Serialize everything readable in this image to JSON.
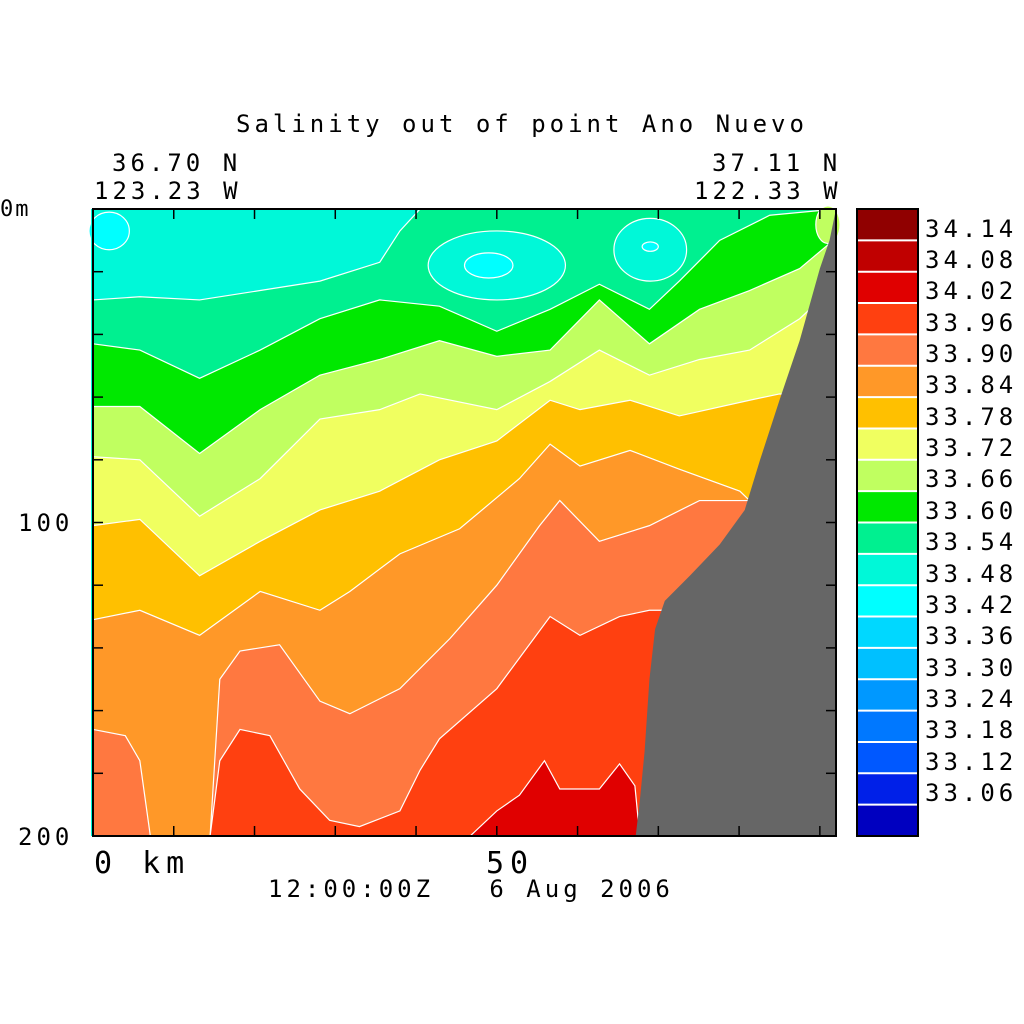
{
  "chart_data": {
    "type": "heatmap",
    "subtype": "filled-contour-section",
    "title": "Salinity out of point Ano Nuevo",
    "start_location": {
      "lat": "36.70 N",
      "lon": "123.23 W"
    },
    "end_location": {
      "lat": "37.11 N",
      "lon": "122.33 W"
    },
    "xlabel": "km",
    "ylabel": "m",
    "x_tick_labels": [
      "0",
      "50"
    ],
    "y_tick_labels": [
      "0m",
      "100",
      "200"
    ],
    "xlim": [
      0,
      92
    ],
    "ylim": [
      200,
      0
    ],
    "x_minor_tick_step": 10,
    "y_minor_tick_step": 20,
    "timestamp": "12:00:00Z   6 Aug 2006",
    "colorbar": {
      "levels": [
        "33.06",
        "33.12",
        "33.18",
        "33.24",
        "33.30",
        "33.36",
        "33.42",
        "33.48",
        "33.54",
        "33.60",
        "33.66",
        "33.72",
        "33.78",
        "33.84",
        "33.90",
        "33.96",
        "34.02",
        "34.08",
        "34.14"
      ],
      "colors": [
        "#0000c0",
        "#0020e8",
        "#0058ff",
        "#0078ff",
        "#0098ff",
        "#00c0ff",
        "#00d8ff",
        "#00ffff",
        "#00f8d8",
        "#00f090",
        "#00e800",
        "#c0ff60",
        "#f0ff60",
        "#ffc000",
        "#ff9828",
        "#ff7840",
        "#ff4010",
        "#e00000",
        "#c00000",
        "#900000"
      ]
    },
    "base_color": "#00f8d8",
    "interfaces": [
      {
        "level": "33.60",
        "color": "#00f090",
        "points": [
          [
            0,
            29
          ],
          [
            5.8,
            28
          ],
          [
            13.2,
            29
          ],
          [
            20.7,
            26
          ],
          [
            28.1,
            23
          ],
          [
            35.5,
            17
          ],
          [
            38,
            7
          ],
          [
            40.5,
            0
          ],
          [
            92,
            0
          ]
        ]
      },
      {
        "level": "33.66",
        "color": "#00e800",
        "points": [
          [
            0,
            43
          ],
          [
            5.8,
            45
          ],
          [
            13.2,
            54
          ],
          [
            20.7,
            45
          ],
          [
            28.1,
            35
          ],
          [
            35.5,
            29
          ],
          [
            42.9,
            31
          ],
          [
            50,
            39
          ],
          [
            56.6,
            32
          ],
          [
            62.7,
            24
          ],
          [
            68.9,
            32
          ],
          [
            72.6,
            23
          ],
          [
            77.6,
            10
          ],
          [
            83.8,
            2
          ],
          [
            92,
            0
          ]
        ]
      },
      {
        "level": "33.72",
        "color": "#c0ff60",
        "points": [
          [
            0,
            63
          ],
          [
            5.8,
            63
          ],
          [
            13.2,
            78
          ],
          [
            20.7,
            64
          ],
          [
            28.1,
            53
          ],
          [
            35.5,
            48
          ],
          [
            42.9,
            42
          ],
          [
            50,
            47
          ],
          [
            56.6,
            45
          ],
          [
            62.7,
            29
          ],
          [
            68.9,
            43
          ],
          [
            75.1,
            32
          ],
          [
            81.3,
            26
          ],
          [
            87.5,
            19
          ],
          [
            91.2,
            11
          ],
          [
            92,
            10
          ]
        ]
      },
      {
        "level": "33.78",
        "color": "#f0ff60",
        "points": [
          [
            0,
            79
          ],
          [
            5.8,
            80
          ],
          [
            13.2,
            98
          ],
          [
            20.7,
            86
          ],
          [
            28.1,
            67
          ],
          [
            35.5,
            64
          ],
          [
            40.5,
            59
          ],
          [
            50,
            64
          ],
          [
            56.6,
            55
          ],
          [
            62.7,
            45
          ],
          [
            68.9,
            53
          ],
          [
            75.1,
            48
          ],
          [
            81.3,
            45
          ],
          [
            87.5,
            35
          ],
          [
            90,
            29
          ],
          [
            92,
            28
          ]
        ]
      },
      {
        "level": "33.84",
        "color": "#ffc000",
        "points": [
          [
            0,
            101
          ],
          [
            5.8,
            99
          ],
          [
            13.2,
            117
          ],
          [
            20.7,
            106
          ],
          [
            28.1,
            96
          ],
          [
            35.5,
            90
          ],
          [
            42.9,
            80
          ],
          [
            50,
            74
          ],
          [
            56.6,
            61
          ],
          [
            60.3,
            64
          ],
          [
            66.5,
            61
          ],
          [
            72.6,
            66
          ],
          [
            81.3,
            61
          ],
          [
            85,
            59
          ],
          [
            92,
            59
          ]
        ]
      },
      {
        "level": "33.90",
        "color": "#ff9828",
        "points": [
          [
            0,
            131
          ],
          [
            5.8,
            128
          ],
          [
            13.2,
            136
          ],
          [
            20.7,
            122
          ],
          [
            28.1,
            128
          ],
          [
            31.8,
            122
          ],
          [
            38,
            110
          ],
          [
            45.4,
            102
          ],
          [
            52.8,
            86
          ],
          [
            56.6,
            75
          ],
          [
            60.3,
            82
          ],
          [
            66.5,
            77
          ],
          [
            72.6,
            83
          ],
          [
            80.1,
            90
          ],
          [
            81.3,
            93
          ],
          [
            92,
            93
          ]
        ]
      },
      {
        "level": "33.96",
        "color": "#ff7840",
        "points": [
          [
            0,
            166
          ],
          [
            4,
            168
          ],
          [
            5.8,
            176
          ],
          [
            7.1,
            200
          ],
          [
            14.5,
            200
          ],
          [
            15.7,
            150
          ],
          [
            18.2,
            141
          ],
          [
            23.1,
            139
          ],
          [
            28.1,
            157
          ],
          [
            31.8,
            161
          ],
          [
            38,
            153
          ],
          [
            44.2,
            137
          ],
          [
            50,
            120
          ],
          [
            55.3,
            101
          ],
          [
            57.8,
            93
          ],
          [
            62.7,
            106
          ],
          [
            68.9,
            101
          ],
          [
            75.1,
            93
          ],
          [
            80.7,
            93
          ],
          [
            92,
            93
          ]
        ]
      },
      {
        "level": "34.02",
        "color": "#ff4010",
        "points": [
          [
            0,
            200
          ],
          [
            14.5,
            200
          ],
          [
            15.7,
            176
          ],
          [
            18.2,
            166
          ],
          [
            21.9,
            168
          ],
          [
            25.6,
            185
          ],
          [
            29.3,
            195
          ],
          [
            33,
            197
          ],
          [
            38,
            192
          ],
          [
            40.5,
            179
          ],
          [
            42.9,
            169
          ],
          [
            50,
            153
          ],
          [
            56.6,
            130
          ],
          [
            60.3,
            136
          ],
          [
            65.2,
            130
          ],
          [
            68.9,
            128
          ],
          [
            92,
            128
          ]
        ]
      },
      {
        "level": "34.08",
        "color": "#e00000",
        "points": [
          [
            0,
            200
          ],
          [
            46.7,
            200
          ],
          [
            50,
            192
          ],
          [
            52.8,
            187
          ],
          [
            55.9,
            176
          ],
          [
            57.8,
            185
          ],
          [
            62.7,
            185
          ],
          [
            65.2,
            177
          ],
          [
            67.1,
            184
          ],
          [
            67.7,
            200
          ],
          [
            92,
            200
          ]
        ]
      }
    ],
    "patches": [
      {
        "level": "33.48",
        "color": "#00ffff",
        "center": [
          2,
          7
        ],
        "radius": [
          2.5,
          6
        ]
      },
      {
        "level": "33.54",
        "color": "#00f8d8",
        "center": [
          50,
          18
        ],
        "radius": [
          8.5,
          11
        ]
      },
      {
        "level": "33.48",
        "color": "#00ffff",
        "center": [
          49,
          18
        ],
        "radius": [
          3,
          4
        ]
      },
      {
        "level": "33.54",
        "color": "#00f8d8",
        "center": [
          69,
          13
        ],
        "radius": [
          4.5,
          10
        ]
      },
      {
        "level": "33.48",
        "color": "#00ffff",
        "center": [
          69,
          12
        ],
        "radius": [
          1,
          1.5
        ]
      },
      {
        "level": "33.72",
        "color": "#c0ff60",
        "center": [
          91,
          5
        ],
        "radius": [
          1.5,
          6
        ]
      }
    ],
    "bathymetry": {
      "color": "#666666",
      "points": [
        [
          91.2,
          10
        ],
        [
          90,
          19
        ],
        [
          87.5,
          42
        ],
        [
          85,
          61
        ],
        [
          82.6,
          80
        ],
        [
          80.7,
          96
        ],
        [
          77.6,
          107
        ],
        [
          73.9,
          117
        ],
        [
          70.8,
          125
        ],
        [
          69.6,
          134
        ],
        [
          68.9,
          150
        ],
        [
          68.3,
          173
        ],
        [
          67.7,
          189
        ],
        [
          67.2,
          200
        ],
        [
          92,
          200
        ],
        [
          92,
          0
        ]
      ]
    }
  }
}
